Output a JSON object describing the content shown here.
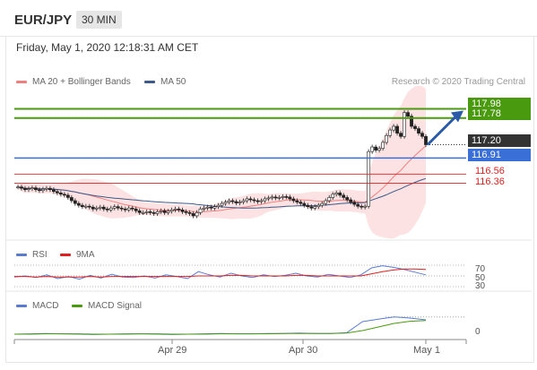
{
  "header": {
    "symbol": "EUR/JPY",
    "timeframe": "30 MIN",
    "timestamp": "Friday, May 1, 2020 12:18:31 AM CET"
  },
  "legend": {
    "ma20": {
      "label": "MA 20 + Bollinger Bands",
      "color": "#f08080"
    },
    "ma50": {
      "label": "MA 50",
      "color": "#3d5a8a"
    },
    "rsi": {
      "label": "RSI",
      "color": "#5a7bd1"
    },
    "rsi_ma": {
      "label": "9MA",
      "color": "#e02020"
    },
    "macd": {
      "label": "MACD",
      "color": "#5a7bd1"
    },
    "macd_signal": {
      "label": "MACD Signal",
      "color": "#4a9a10"
    }
  },
  "credit": "Research © 2020 Trading Central",
  "levels": {
    "r2": {
      "label": "117.98",
      "color": "#4a9a10"
    },
    "r1": {
      "label": "117.78",
      "color": "#4a9a10"
    },
    "last": {
      "label": "117.20",
      "color": "#333333"
    },
    "pivot": {
      "label": "116.91",
      "color": "#3b6fd8"
    },
    "s1": {
      "label": "116.56",
      "color": "#e02020"
    },
    "s2": {
      "label": "116.36",
      "color": "#e02020"
    }
  },
  "rsi_ticks": [
    "70",
    "50",
    "30"
  ],
  "macd_ticks": [
    "0"
  ],
  "x_ticks": [
    "Apr 29",
    "Apr 30",
    "May 1"
  ],
  "chart_data": [
    {
      "type": "candlestick",
      "ylim": [
        115.2,
        118.4
      ],
      "series": [
        {
          "name": "Price",
          "values": [
            116.28,
            116.25,
            116.22,
            116.24,
            116.26,
            116.22,
            116.2,
            116.23,
            116.25,
            116.22,
            116.18,
            116.15,
            116.12,
            116.1,
            116.05,
            115.98,
            115.92,
            115.88,
            115.85,
            115.86,
            115.84,
            115.8,
            115.82,
            115.84,
            115.8,
            115.78,
            115.82,
            115.85,
            115.82,
            115.8,
            115.78,
            115.82,
            115.8,
            115.76,
            115.72,
            115.72,
            115.74,
            115.72,
            115.7,
            115.74,
            115.76,
            115.72,
            115.75,
            115.78,
            115.8,
            115.78,
            115.74,
            115.72,
            115.7,
            115.65,
            115.72,
            115.8,
            115.82,
            115.84,
            115.82,
            115.85,
            115.88,
            115.92,
            115.95,
            115.98,
            115.96,
            115.93,
            115.95,
            115.98,
            116.02,
            116.0,
            115.98,
            115.96,
            115.98,
            116.02,
            116.04,
            116.06,
            116.04,
            116.05,
            116.07,
            116.06,
            116.02,
            115.98,
            115.95,
            115.92,
            115.88,
            115.85,
            115.82,
            115.85,
            115.88,
            115.92,
            115.98,
            116.05,
            116.12,
            116.15,
            116.1,
            116.05,
            116.0,
            115.95,
            115.9,
            115.86,
            115.84,
            115.86,
            117.05,
            117.15,
            117.08,
            117.12,
            117.25,
            117.4,
            117.52,
            117.6,
            117.45,
            117.38,
            117.9,
            117.82,
            117.6,
            117.55,
            117.45,
            117.38,
            117.2
          ]
        }
      ],
      "levels": [
        117.98,
        117.78,
        117.2,
        116.91,
        116.56,
        116.36
      ]
    },
    {
      "type": "line",
      "title": "RSI",
      "ylim": [
        30,
        70
      ],
      "series": [
        {
          "name": "RSI",
          "values": [
            48,
            50,
            47,
            52,
            45,
            49,
            44,
            51,
            46,
            53,
            48,
            47,
            50,
            46,
            52,
            49,
            45,
            58,
            52,
            48,
            55,
            50,
            47,
            52,
            49,
            51,
            55,
            50,
            48,
            53,
            50,
            47,
            52,
            65,
            69,
            66,
            62,
            57,
            52
          ]
        },
        {
          "name": "9MA",
          "values": [
            49,
            49,
            48,
            49,
            48,
            48,
            48,
            49,
            48,
            49,
            49,
            49,
            49,
            49,
            49,
            49,
            49,
            50,
            50,
            50,
            51,
            51,
            50,
            50,
            50,
            50,
            51,
            51,
            50,
            50,
            50,
            50,
            50,
            54,
            58,
            61,
            63,
            63,
            62
          ]
        }
      ]
    },
    {
      "type": "line",
      "title": "MACD",
      "series": [
        {
          "name": "MACD",
          "values": [
            0,
            0.01,
            0.02,
            0.01,
            0.0,
            -0.01,
            0.0,
            0.01,
            0.01,
            0.0,
            -0.01,
            0.0,
            0.01,
            0.02,
            0.01,
            0.01,
            0.02,
            0.02,
            0.03,
            0.02,
            0.02,
            0.04,
            0.35,
            0.42,
            0.48,
            0.45,
            0.4
          ]
        },
        {
          "name": "MACD Signal",
          "values": [
            0,
            0.0,
            0.01,
            0.01,
            0.01,
            0.0,
            0.0,
            0.0,
            0.01,
            0.01,
            0.0,
            0.0,
            0.0,
            0.01,
            0.01,
            0.01,
            0.01,
            0.02,
            0.02,
            0.02,
            0.02,
            0.03,
            0.1,
            0.2,
            0.3,
            0.36,
            0.38
          ]
        }
      ]
    }
  ]
}
